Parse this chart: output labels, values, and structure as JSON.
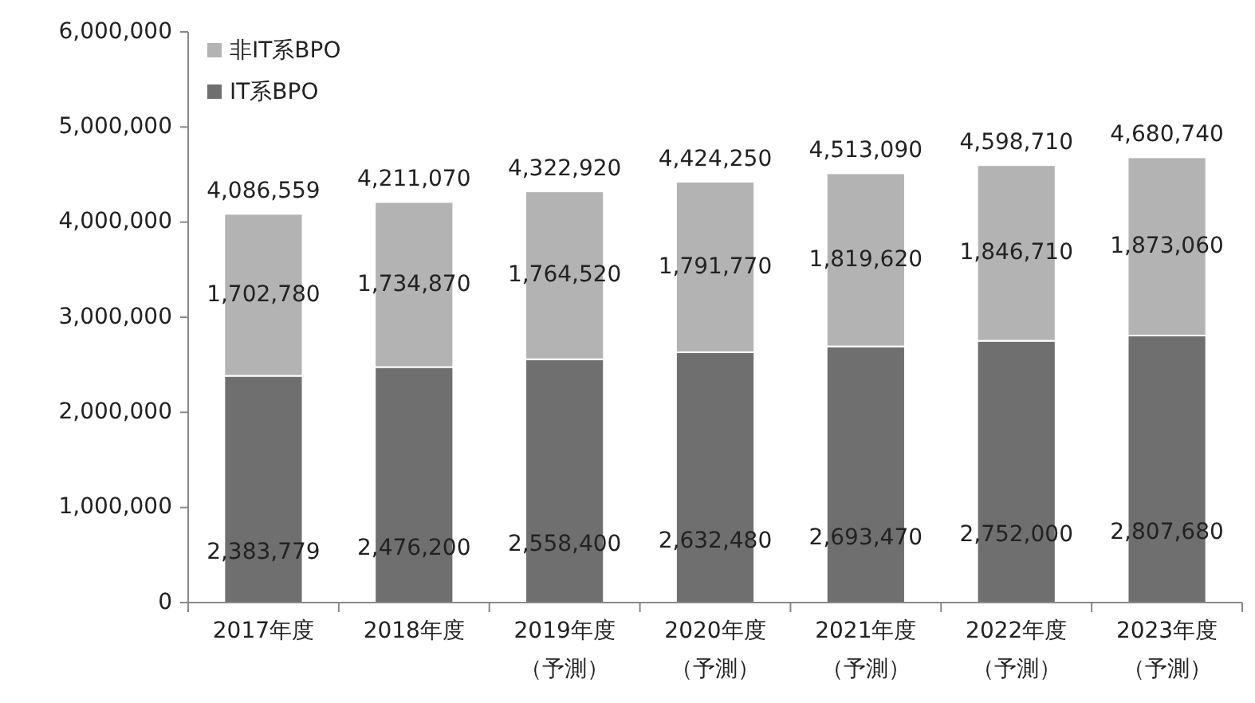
{
  "chart_data": {
    "type": "bar",
    "stacked": true,
    "legend": "top left",
    "grid": false,
    "categories": [
      "2017年度",
      "2018年度",
      "2019年度（予測）",
      "2020年度（予測）",
      "2021年度（予測）",
      "2022年度（予測）",
      "2023年度（予測）"
    ],
    "series": [
      {
        "name": "IT系BPO",
        "color": "#6f6f6f",
        "values": [
          2383779,
          2476200,
          2558400,
          2632480,
          2693470,
          2752000,
          2807680
        ],
        "value_labels": [
          "2,383,779",
          "2,476,200",
          "2,558,400",
          "2,632,480",
          "2,693,470",
          "2,752,000",
          "2,807,680"
        ]
      },
      {
        "name": "非IT系BPO",
        "color": "#b3b3b3",
        "values": [
          1702780,
          1734870,
          1764520,
          1791770,
          1819620,
          1846710,
          1873060
        ],
        "value_labels": [
          "1,702,780",
          "1,734,870",
          "1,764,520",
          "1,791,770",
          "1,819,620",
          "1,846,710",
          "1,873,060"
        ]
      }
    ],
    "totals": [
      "4,086,559",
      "4,211,070",
      "4,322,920",
      "4,424,250",
      "4,513,090",
      "4,598,710",
      "4,680,740"
    ],
    "ylim": [
      0,
      6000000
    ],
    "yticks": [
      {
        "value": 0,
        "label": "0"
      },
      {
        "value": 1000000,
        "label": "1,000,000"
      },
      {
        "value": 2000000,
        "label": "2,000,000"
      },
      {
        "value": 3000000,
        "label": "3,000,000"
      },
      {
        "value": 4000000,
        "label": "4,000,000"
      },
      {
        "value": 5000000,
        "label": "5,000,000"
      },
      {
        "value": 6000000,
        "label": "6,000,000"
      }
    ]
  }
}
